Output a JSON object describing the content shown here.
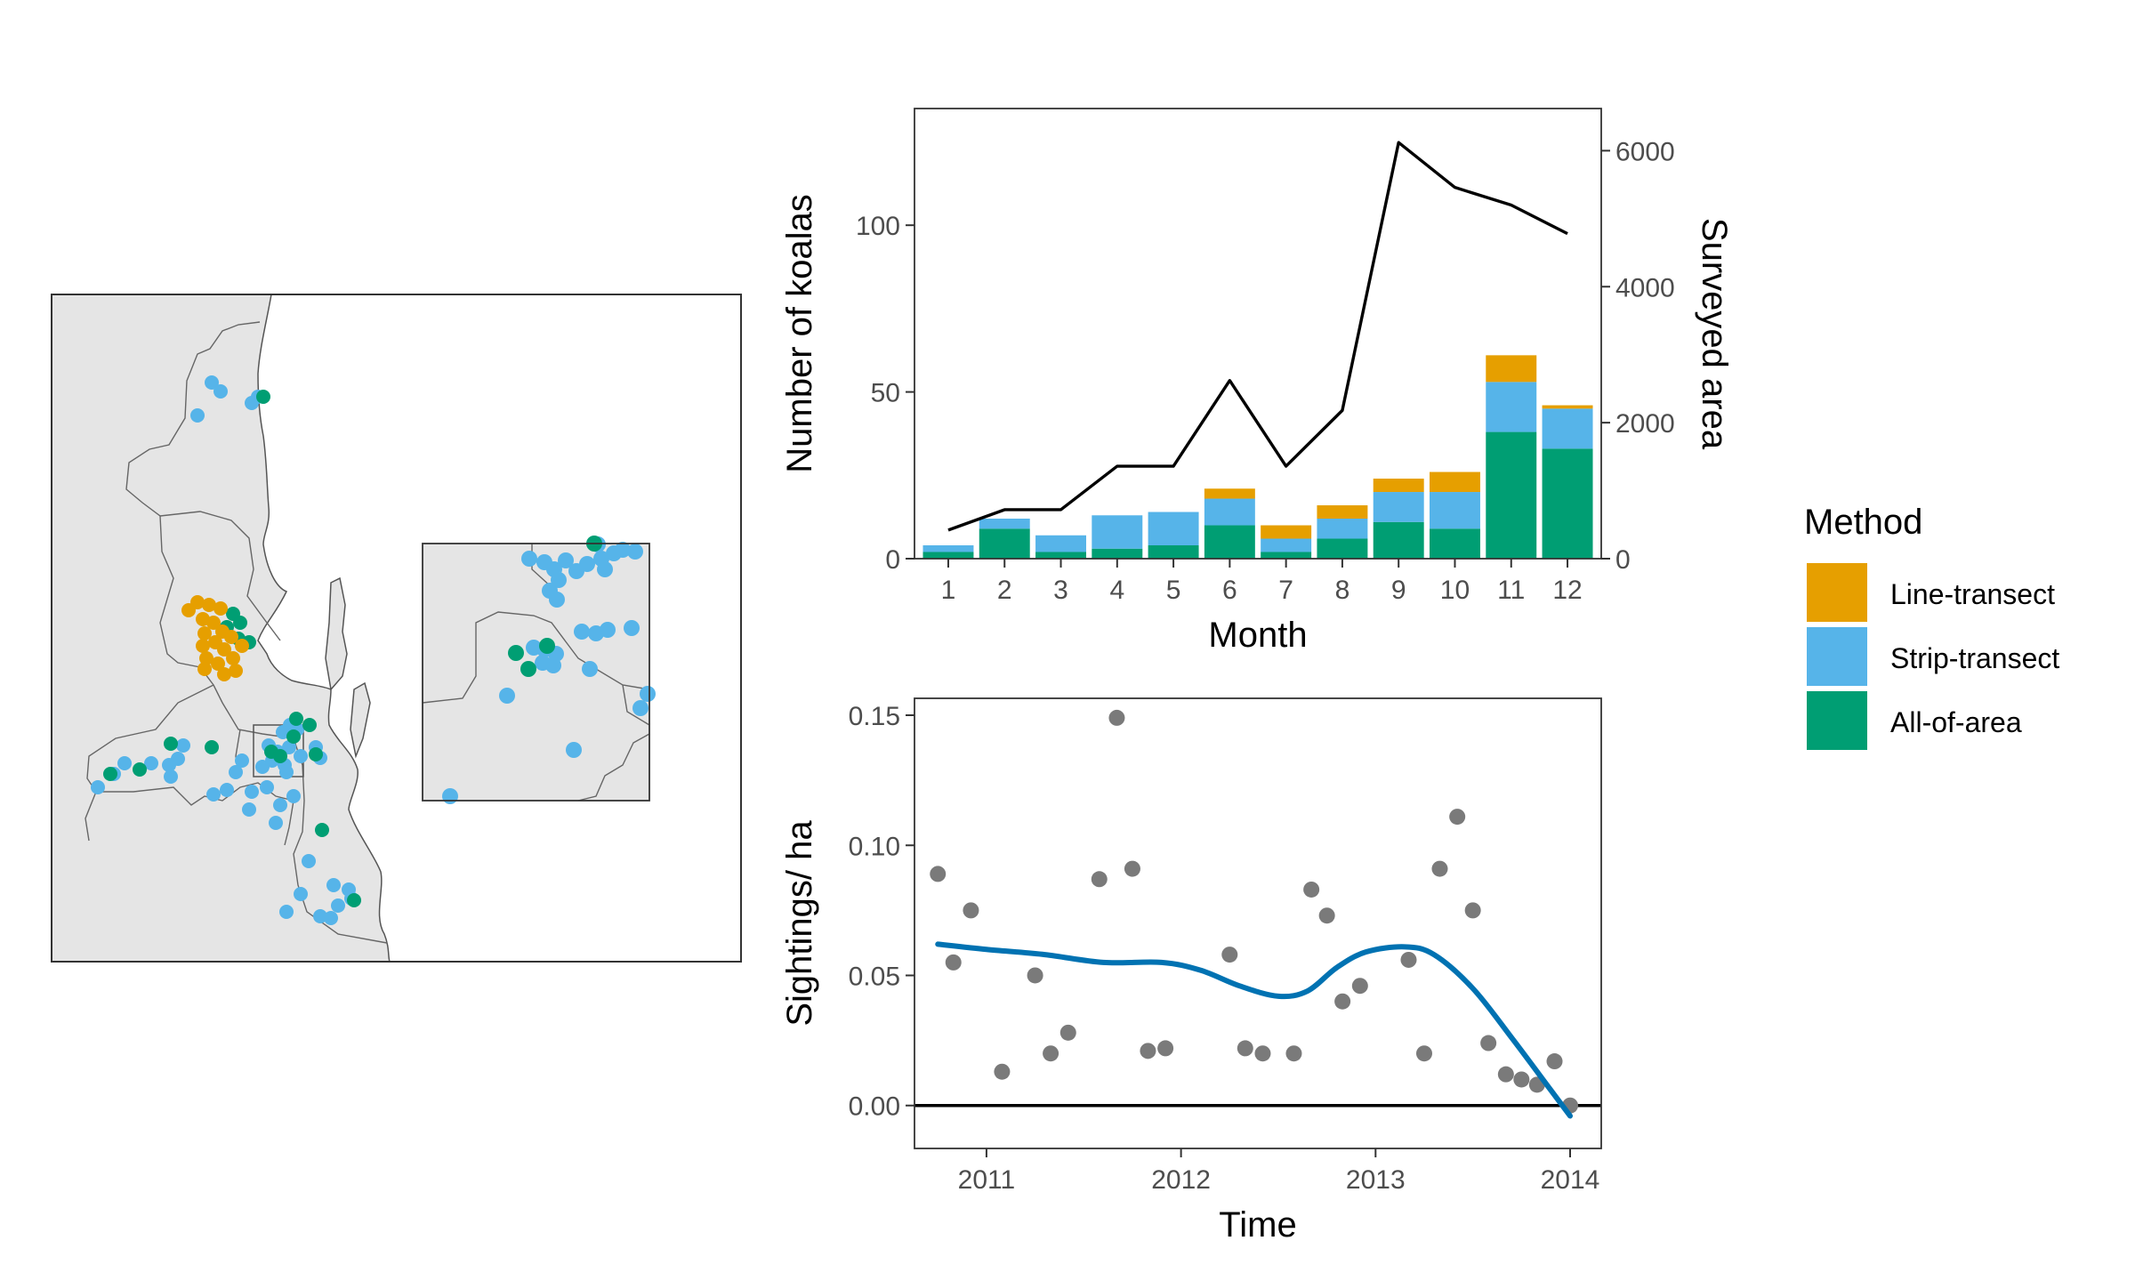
{
  "colors": {
    "line_transect": "#E69F00",
    "strip_transect": "#56B4E9",
    "all_of_area": "#009E73",
    "land": "#E5E5E5",
    "border": "#555555",
    "line": "#000000",
    "points": "#7A7A7A",
    "smooth": "#0072B2"
  },
  "legend": {
    "title": "Method",
    "items": [
      {
        "label": "Line-transect",
        "color": "#E69F00"
      },
      {
        "label": "Strip-transect",
        "color": "#56B4E9"
      },
      {
        "label": "All-of-area",
        "color": "#009E73"
      }
    ]
  },
  "chart_data": [
    {
      "type": "map",
      "legend_ref": "Method"
    },
    {
      "type": "bar",
      "stacked": true,
      "xlabel": "Month",
      "ylabel": "Number of koalas",
      "y2label": "Surveyed area",
      "categories": [
        "1",
        "2",
        "3",
        "4",
        "5",
        "6",
        "7",
        "8",
        "9",
        "10",
        "11",
        "12"
      ],
      "series": [
        {
          "name": "All-of-area",
          "values": [
            2,
            9,
            2,
            3,
            4,
            10,
            2,
            6,
            11,
            9,
            38,
            33
          ]
        },
        {
          "name": "Strip-transect",
          "values": [
            2,
            3,
            5,
            10,
            10,
            8,
            4,
            6,
            9,
            11,
            15,
            12
          ]
        },
        {
          "name": "Line-transect",
          "values": [
            0,
            0,
            0,
            0,
            0,
            3,
            4,
            4,
            4,
            6,
            8,
            1
          ]
        }
      ],
      "line": {
        "values": [
          420,
          720,
          720,
          1360,
          1360,
          2620,
          1360,
          2180,
          6120,
          5460,
          5200,
          4780
        ]
      },
      "ylim": [
        0,
        135
      ],
      "yticks": [
        0,
        50,
        100
      ],
      "y2lim": [
        0,
        6620
      ],
      "y2ticks": [
        0,
        2000,
        4000,
        6000
      ]
    },
    {
      "type": "scatter",
      "xlabel": "Time",
      "ylabel": "Sightings/ ha",
      "xlim": [
        2010.63,
        2014.16
      ],
      "ylim": [
        -0.0165,
        0.1565
      ],
      "xticks": [
        2011,
        2012,
        2013,
        2014
      ],
      "yticks": [
        "0.00",
        "0.05",
        "0.10",
        "0.15"
      ],
      "points": [
        {
          "x": 2010.75,
          "y": 0.089
        },
        {
          "x": 2010.83,
          "y": 0.055
        },
        {
          "x": 2010.92,
          "y": 0.075
        },
        {
          "x": 2011.08,
          "y": 0.013
        },
        {
          "x": 2011.25,
          "y": 0.05
        },
        {
          "x": 2011.33,
          "y": 0.02
        },
        {
          "x": 2011.42,
          "y": 0.028
        },
        {
          "x": 2011.58,
          "y": 0.087
        },
        {
          "x": 2011.67,
          "y": 0.149
        },
        {
          "x": 2011.75,
          "y": 0.091
        },
        {
          "x": 2011.83,
          "y": 0.021
        },
        {
          "x": 2011.92,
          "y": 0.022
        },
        {
          "x": 2012.25,
          "y": 0.058
        },
        {
          "x": 2012.33,
          "y": 0.022
        },
        {
          "x": 2012.42,
          "y": 0.02
        },
        {
          "x": 2012.58,
          "y": 0.02
        },
        {
          "x": 2012.67,
          "y": 0.083
        },
        {
          "x": 2012.75,
          "y": 0.073
        },
        {
          "x": 2012.83,
          "y": 0.04
        },
        {
          "x": 2012.92,
          "y": 0.046
        },
        {
          "x": 2013.17,
          "y": 0.056
        },
        {
          "x": 2013.25,
          "y": 0.02
        },
        {
          "x": 2013.33,
          "y": 0.091
        },
        {
          "x": 2013.42,
          "y": 0.111
        },
        {
          "x": 2013.5,
          "y": 0.075
        },
        {
          "x": 2013.58,
          "y": 0.024
        },
        {
          "x": 2013.67,
          "y": 0.012
        },
        {
          "x": 2013.75,
          "y": 0.01
        },
        {
          "x": 2013.83,
          "y": 0.008
        },
        {
          "x": 2013.92,
          "y": 0.017
        },
        {
          "x": 2014.0,
          "y": 0.0
        }
      ],
      "smooth": [
        {
          "x": 2010.75,
          "y": 0.062
        },
        {
          "x": 2011.0,
          "y": 0.06
        },
        {
          "x": 2011.3,
          "y": 0.058
        },
        {
          "x": 2011.6,
          "y": 0.055
        },
        {
          "x": 2011.9,
          "y": 0.055
        },
        {
          "x": 2012.1,
          "y": 0.052
        },
        {
          "x": 2012.3,
          "y": 0.046
        },
        {
          "x": 2012.5,
          "y": 0.042
        },
        {
          "x": 2012.65,
          "y": 0.044
        },
        {
          "x": 2012.8,
          "y": 0.053
        },
        {
          "x": 2012.95,
          "y": 0.059
        },
        {
          "x": 2013.15,
          "y": 0.061
        },
        {
          "x": 2013.3,
          "y": 0.058
        },
        {
          "x": 2013.5,
          "y": 0.045
        },
        {
          "x": 2013.7,
          "y": 0.026
        },
        {
          "x": 2013.9,
          "y": 0.006
        },
        {
          "x": 2014.0,
          "y": -0.004
        }
      ],
      "hline": 0
    }
  ]
}
